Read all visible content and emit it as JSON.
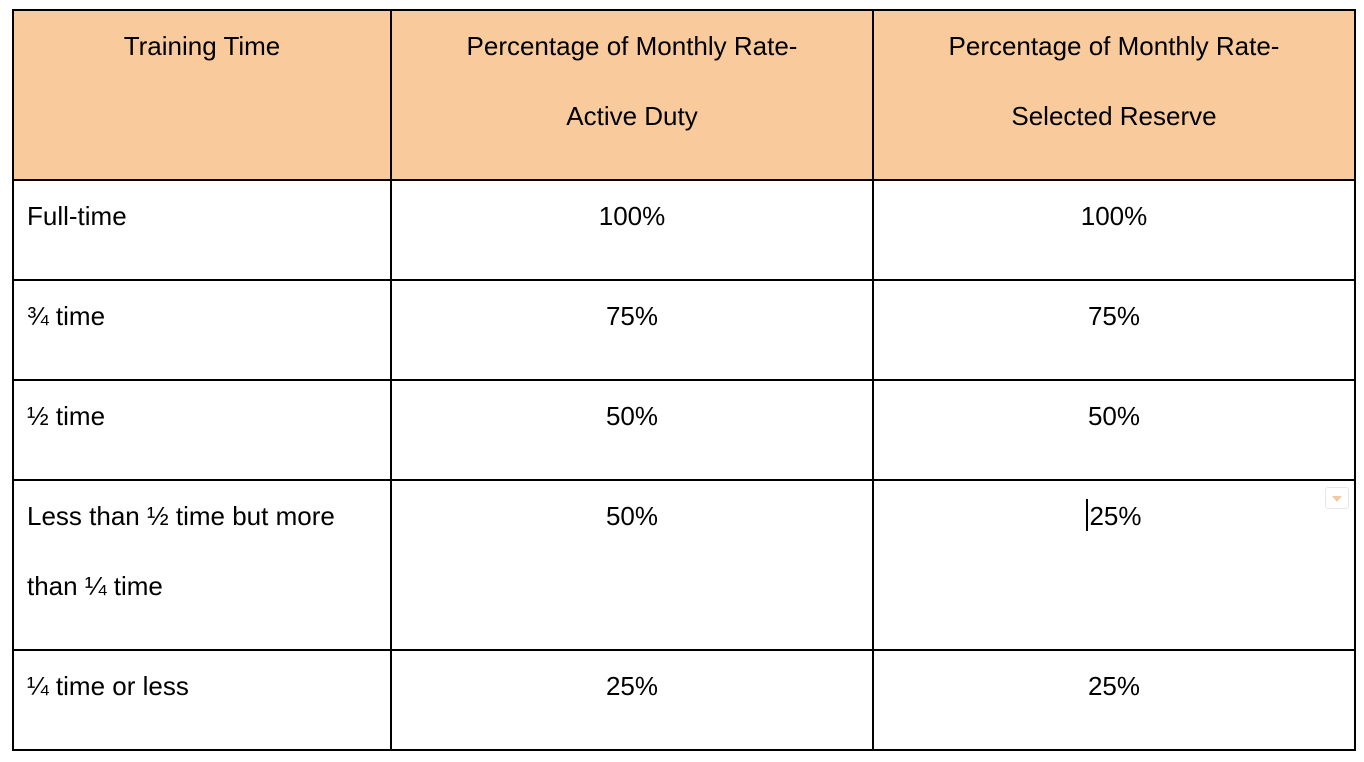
{
  "theme": {
    "header_bg": "#f9cb9c",
    "border_color": "#000000",
    "text_color": "#000000"
  },
  "table": {
    "headers": [
      {
        "lines": [
          "Training Time"
        ]
      },
      {
        "lines": [
          "Percentage of Monthly Rate-",
          "Active Duty"
        ]
      },
      {
        "lines": [
          "Percentage of Monthly Rate-",
          "Selected Reserve"
        ]
      }
    ],
    "rows": [
      {
        "training_time": [
          "Full-time"
        ],
        "active_duty": "100%",
        "selected_reserve": "100%"
      },
      {
        "training_time": [
          "¾ time"
        ],
        "active_duty": "75%",
        "selected_reserve": "75%"
      },
      {
        "training_time": [
          "½ time"
        ],
        "active_duty": "50%",
        "selected_reserve": "50%"
      },
      {
        "training_time": [
          "Less than ½ time but more",
          "than ¼ time"
        ],
        "active_duty": "50%",
        "selected_reserve": "25%"
      },
      {
        "training_time": [
          "¼ time or less"
        ],
        "active_duty": "25%",
        "selected_reserve": "25%"
      }
    ]
  },
  "dropdown_icon": "chevron-down-icon"
}
